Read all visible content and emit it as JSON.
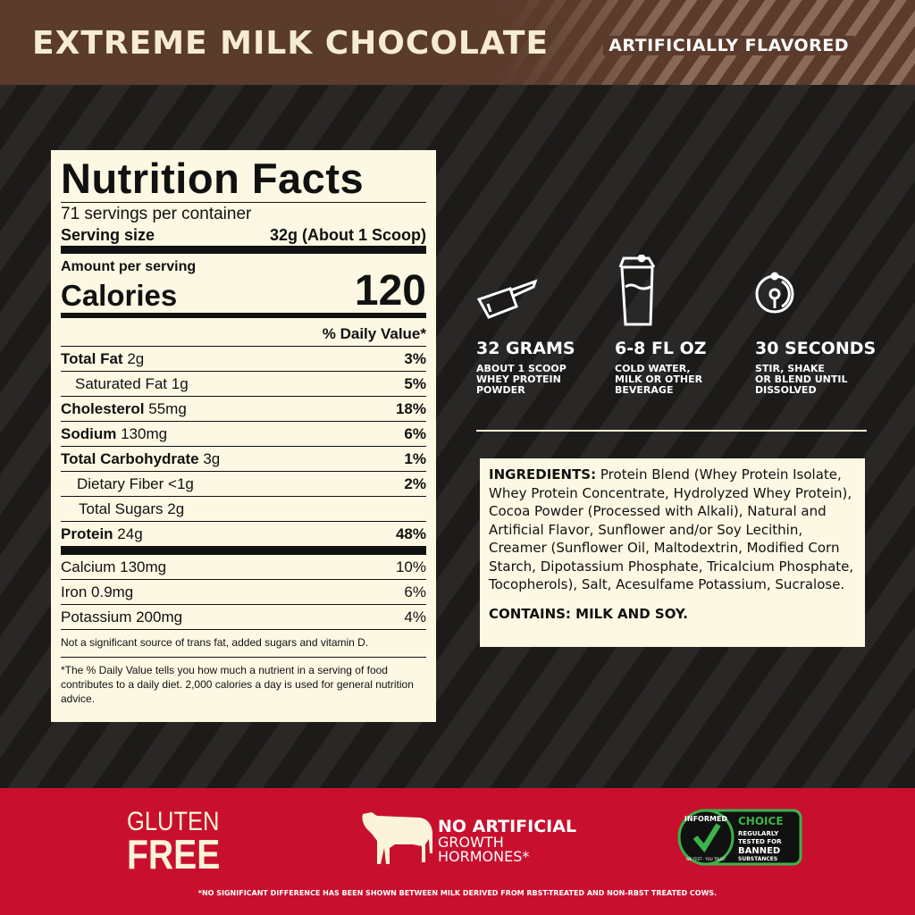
{
  "header": {
    "title": "EXTREME MILK CHOCOLATE",
    "flavor": "ARTIFICIALLY FLAVORED"
  },
  "nutrition": {
    "title": "Nutrition Facts",
    "servings": "71 servings per container",
    "serving_size_label": "Serving size",
    "serving_size": "32g (About 1 Scoop)",
    "amount_label": "Amount per serving",
    "calories_label": "Calories",
    "calories": "120",
    "dv_header": "% Daily Value*",
    "rows": [
      {
        "name": "Total Fat",
        "amount": "2g",
        "dv": "3%"
      },
      {
        "name": "Saturated Fat",
        "amount": "1g",
        "dv": "5%"
      },
      {
        "name": "Cholesterol",
        "amount": "55mg",
        "dv": "18%"
      },
      {
        "name": "Sodium",
        "amount": "130mg",
        "dv": "6%"
      },
      {
        "name": "Total Carbohydrate",
        "amount": "3g",
        "dv": "1%"
      },
      {
        "name": "Dietary Fiber",
        "amount": "<1g",
        "dv": "2%"
      },
      {
        "name": "Total Sugars",
        "amount": "2g",
        "dv": ""
      },
      {
        "name": "Protein",
        "amount": "24g",
        "dv": "48%"
      }
    ],
    "minerals": [
      {
        "name": "Calcium 130mg",
        "dv": "10%"
      },
      {
        "name": "Iron 0.9mg",
        "dv": "6%"
      },
      {
        "name": "Potassium 200mg",
        "dv": "4%"
      }
    ],
    "note": "Not a significant source of trans fat, added sugars and vitamin D.",
    "footnote": "*The % Daily Value tells you how much a nutrient in a serving of food contributes to a daily diet. 2,000 calories a day is used for general nutrition advice."
  },
  "directions": [
    {
      "icon": "scoop-icon",
      "title": "32 GRAMS",
      "text": "ABOUT 1 SCOOP\nWHEY PROTEIN\nPOWDER"
    },
    {
      "icon": "shaker-icon",
      "title": "6-8 FL OZ",
      "text": "COLD WATER,\nMILK OR OTHER\nBEVERAGE"
    },
    {
      "icon": "timer-icon",
      "title": "30 SECONDS",
      "text": "STIR, SHAKE\nOR BLEND UNTIL\nDISSOLVED"
    }
  ],
  "ingredients": {
    "label": "INGREDIENTS:",
    "text": " Protein Blend (Whey Protein Isolate, Whey Protein Concentrate, Hydrolyzed Whey Protein), Cocoa Powder (Processed with Alkali), Natural and Artificial Flavor, Sunflower and/or Soy Lecithin, Creamer (Sunflower Oil, Maltodextrin, Modified Corn Starch, Dipotassium Phosphate, Tricalcium Phosphate, Tocopherols), Salt, Acesulfame Potassium, Sucralose.",
    "contains": "CONTAINS: MILK AND SOY."
  },
  "badges": {
    "gluten_1": "GLUTEN",
    "gluten_2": "FREE",
    "hormones_1": "NO ARTIFICIAL",
    "hormones_2": "GROWTH",
    "hormones_3": "HORMONES*",
    "informed": "INFORMED",
    "informed_sub": "WE TEST · YOU TRUST",
    "choice": "CHOICE",
    "choice_text": [
      "REGULARLY",
      "TESTED FOR",
      "BANNED",
      "SUBSTANCES"
    ]
  },
  "footnote": "*NO SIGNIFICANT DIFFERENCE HAS BEEN SHOWN BETWEEN MILK DERIVED FROM RBST-TREATED AND NON-RBST TREATED COWS.",
  "colors": {
    "header": "#5b3b2c",
    "background": "#1e1c1b",
    "panel": "#fdf8e3",
    "red_band": "#c8102e",
    "badge_green": "#3cb34a"
  }
}
